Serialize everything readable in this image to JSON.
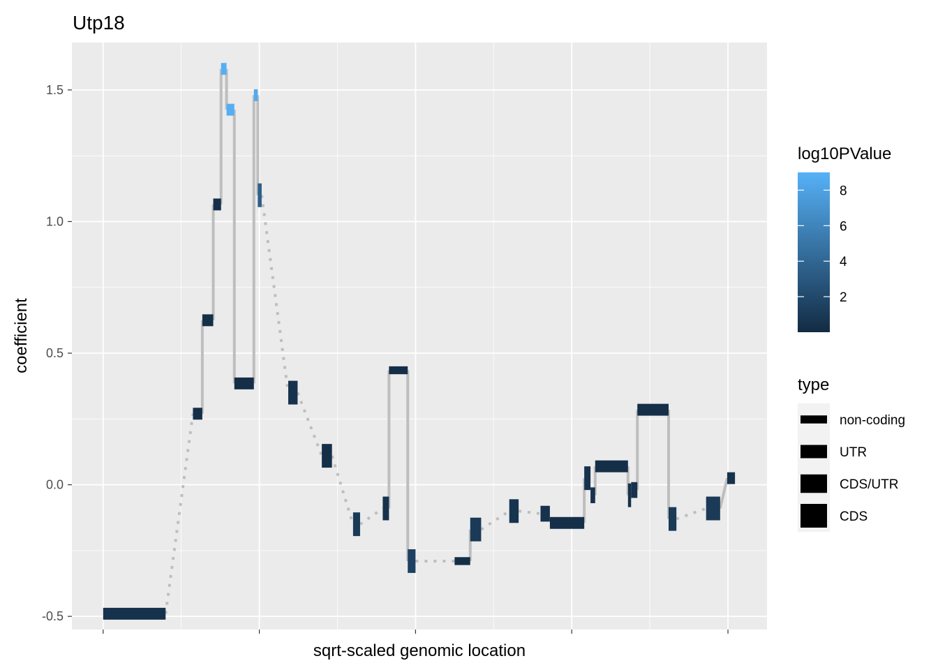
{
  "chart_data": {
    "type": "line",
    "title": "Utp18",
    "xlabel": "sqrt-scaled genomic location",
    "ylabel": "coefficient",
    "ylim": [
      -0.55,
      1.68
    ],
    "xlim": [
      -0.2,
      4.25
    ],
    "y_ticks": [
      {
        "value": -0.5,
        "label": "-0.5"
      },
      {
        "value": 0.0,
        "label": "0.0"
      },
      {
        "value": 0.5,
        "label": "0.5"
      },
      {
        "value": 1.0,
        "label": "1.0"
      },
      {
        "value": 1.5,
        "label": "1.5"
      }
    ],
    "x_major_gridlines": [
      0,
      1,
      2,
      3,
      4
    ],
    "x_minor_gridlines": [
      0.5,
      1.5,
      2.5,
      3.5
    ],
    "grid": true,
    "legend_placement": "right",
    "panel_background": "#ebebeb",
    "grid_color": "#ffffff",
    "connector_color": "#bebebe",
    "color_low": "#132b43",
    "color_high": "#56b1f7",
    "color_legend": {
      "title": "log10PValue",
      "min": 0.0,
      "max": 9.0,
      "ticks": [
        {
          "value": 2,
          "label": "2"
        },
        {
          "value": 4,
          "label": "4"
        },
        {
          "value": 6,
          "label": "6"
        },
        {
          "value": 8,
          "label": "8"
        }
      ]
    },
    "type_legend": {
      "title": "type",
      "items": [
        {
          "label": "non-coding",
          "size": 1
        },
        {
          "label": "UTR",
          "size": 2
        },
        {
          "label": "CDS/UTR",
          "size": 3
        },
        {
          "label": "CDS",
          "size": 4
        }
      ]
    },
    "segments": [
      {
        "x0": 0.0,
        "x1": 0.4,
        "y": -0.49,
        "h": 0.045,
        "p": 0.4
      },
      {
        "x0": 0.575,
        "x1": 0.635,
        "y": 0.27,
        "h": 0.045,
        "p": 0.3
      },
      {
        "x0": 0.635,
        "x1": 0.705,
        "y": 0.625,
        "h": 0.045,
        "p": 0.3
      },
      {
        "x0": 0.705,
        "x1": 0.755,
        "y": 1.065,
        "h": 0.045,
        "p": 0.3
      },
      {
        "x0": 0.755,
        "x1": 0.79,
        "y": 1.58,
        "h": 0.045,
        "p": 8.8
      },
      {
        "x0": 0.79,
        "x1": 0.84,
        "y": 1.425,
        "h": 0.045,
        "p": 8.8
      },
      {
        "x0": 0.84,
        "x1": 0.965,
        "y": 0.385,
        "h": 0.045,
        "p": 0.2
      },
      {
        "x0": 0.965,
        "x1": 0.99,
        "y": 1.48,
        "h": 0.045,
        "p": 8.5
      },
      {
        "x0": 0.99,
        "x1": 1.015,
        "y": 1.1,
        "h": 0.09,
        "p": 3.5
      },
      {
        "x0": 1.185,
        "x1": 1.245,
        "y": 0.35,
        "h": 0.09,
        "p": 0.5
      },
      {
        "x0": 1.4,
        "x1": 1.465,
        "y": 0.11,
        "h": 0.09,
        "p": 0.3
      },
      {
        "x0": 1.6,
        "x1": 1.645,
        "y": -0.15,
        "h": 0.09,
        "p": 1.0
      },
      {
        "x0": 1.79,
        "x1": 1.83,
        "y": -0.09,
        "h": 0.09,
        "p": 0.5
      },
      {
        "x0": 1.83,
        "x1": 1.95,
        "y": 0.435,
        "h": 0.03,
        "p": 0.2
      },
      {
        "x0": 1.95,
        "x1": 2.0,
        "y": -0.29,
        "h": 0.09,
        "p": 1.5
      },
      {
        "x0": 2.25,
        "x1": 2.35,
        "y": -0.29,
        "h": 0.03,
        "p": 0.2
      },
      {
        "x0": 2.35,
        "x1": 2.42,
        "y": -0.17,
        "h": 0.09,
        "p": 1.0
      },
      {
        "x0": 2.6,
        "x1": 2.66,
        "y": -0.1,
        "h": 0.09,
        "p": 0.6
      },
      {
        "x0": 2.8,
        "x1": 2.86,
        "y": -0.11,
        "h": 0.06,
        "p": 0.5
      },
      {
        "x0": 2.86,
        "x1": 3.08,
        "y": -0.145,
        "h": 0.045,
        "p": 0.3
      },
      {
        "x0": 3.08,
        "x1": 3.12,
        "y": 0.025,
        "h": 0.09,
        "p": 0.5
      },
      {
        "x0": 3.12,
        "x1": 3.15,
        "y": -0.04,
        "h": 0.06,
        "p": 0.5
      },
      {
        "x0": 3.15,
        "x1": 3.36,
        "y": 0.07,
        "h": 0.045,
        "p": 0.3
      },
      {
        "x0": 3.36,
        "x1": 3.38,
        "y": -0.04,
        "h": 0.09,
        "p": 0.4
      },
      {
        "x0": 3.38,
        "x1": 3.42,
        "y": -0.02,
        "h": 0.06,
        "p": 0.5
      },
      {
        "x0": 3.42,
        "x1": 3.62,
        "y": 0.285,
        "h": 0.045,
        "p": 0.3
      },
      {
        "x0": 3.62,
        "x1": 3.67,
        "y": -0.13,
        "h": 0.09,
        "p": 1.0
      },
      {
        "x0": 3.86,
        "x1": 3.95,
        "y": -0.09,
        "h": 0.09,
        "p": 1.0
      },
      {
        "x0": 3.995,
        "x1": 4.045,
        "y": 0.025,
        "h": 0.045,
        "p": 0.5
      }
    ],
    "connectors": [
      {
        "x": 0.4,
        "y0": -0.49,
        "x1": 0.575,
        "y1": 0.27,
        "style": "dotted"
      },
      {
        "x": 0.635,
        "y0": 0.27,
        "y1": 0.625,
        "style": "solid"
      },
      {
        "x": 0.705,
        "y0": 0.625,
        "y1": 1.065,
        "style": "solid"
      },
      {
        "x": 0.755,
        "y0": 1.065,
        "y1": 1.58,
        "style": "solid"
      },
      {
        "x": 0.79,
        "y0": 1.58,
        "y1": 1.425,
        "style": "solid"
      },
      {
        "x": 0.84,
        "y0": 1.425,
        "y1": 0.385,
        "style": "solid"
      },
      {
        "x": 0.965,
        "y0": 0.385,
        "y1": 1.48,
        "style": "solid"
      },
      {
        "x": 0.99,
        "y0": 1.48,
        "y1": 1.1,
        "style": "solid"
      },
      {
        "x": 1.015,
        "y0": 1.1,
        "x1": 1.185,
        "y1": 0.35,
        "style": "dotted"
      },
      {
        "x": 1.245,
        "y0": 0.35,
        "x1": 1.4,
        "y1": 0.11,
        "style": "dotted"
      },
      {
        "x": 1.465,
        "y0": 0.11,
        "x1": 1.6,
        "y1": -0.15,
        "style": "dotted"
      },
      {
        "x": 1.645,
        "y0": -0.15,
        "x1": 1.79,
        "y1": -0.09,
        "style": "dotted"
      },
      {
        "x": 1.83,
        "y0": -0.09,
        "y1": 0.435,
        "style": "solid"
      },
      {
        "x": 1.95,
        "y0": 0.435,
        "y1": -0.29,
        "style": "solid"
      },
      {
        "x": 2.0,
        "y0": -0.29,
        "x1": 2.25,
        "y1": -0.29,
        "style": "dotted"
      },
      {
        "x": 2.35,
        "y0": -0.29,
        "y1": -0.17,
        "style": "solid"
      },
      {
        "x": 2.42,
        "y0": -0.17,
        "x1": 2.6,
        "y1": -0.1,
        "style": "dotted"
      },
      {
        "x": 2.66,
        "y0": -0.1,
        "x1": 2.8,
        "y1": -0.11,
        "style": "dotted"
      },
      {
        "x": 3.08,
        "y0": -0.145,
        "y1": 0.025,
        "style": "solid"
      },
      {
        "x": 3.15,
        "y0": -0.04,
        "y1": 0.07,
        "style": "solid"
      },
      {
        "x": 3.36,
        "y0": 0.07,
        "y1": -0.04,
        "style": "solid"
      },
      {
        "x": 3.42,
        "y0": -0.02,
        "y1": 0.285,
        "style": "solid"
      },
      {
        "x": 3.62,
        "y0": 0.285,
        "y1": -0.13,
        "style": "solid"
      },
      {
        "x": 3.67,
        "y0": -0.13,
        "x1": 3.86,
        "y1": -0.09,
        "style": "dotted"
      },
      {
        "x": 3.95,
        "y0": -0.09,
        "x1": 3.995,
        "y1": 0.025,
        "style": "solid"
      }
    ]
  }
}
